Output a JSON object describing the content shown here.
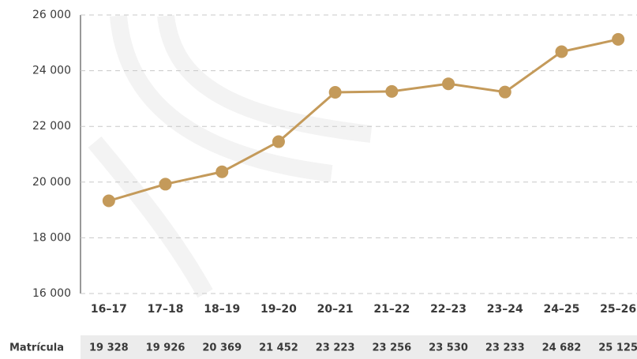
{
  "chart_data": {
    "type": "line",
    "categories": [
      "16–17",
      "17–18",
      "18–19",
      "19–20",
      "20–21",
      "21–22",
      "22–23",
      "23–24",
      "24–25",
      "25–26"
    ],
    "series": [
      {
        "name": "Matrícula",
        "color": "#c49a5a",
        "values": [
          19328,
          19926,
          20369,
          21452,
          23223,
          23256,
          23530,
          23233,
          24682,
          25125
        ],
        "value_labels": [
          "19 328",
          "19 926",
          "20 369",
          "21 452",
          "23 223",
          "23 256",
          "23 530",
          "23 233",
          "24 682",
          "25 125"
        ]
      }
    ],
    "ylim": [
      16000,
      26000
    ],
    "yticks": [
      {
        "value": 16000,
        "label": "16 000"
      },
      {
        "value": 18000,
        "label": "18 000"
      },
      {
        "value": 20000,
        "label": "20 000"
      },
      {
        "value": 22000,
        "label": "22 000"
      },
      {
        "value": 24000,
        "label": "24 000"
      },
      {
        "value": 26000,
        "label": "26 000"
      }
    ],
    "grid": true
  }
}
